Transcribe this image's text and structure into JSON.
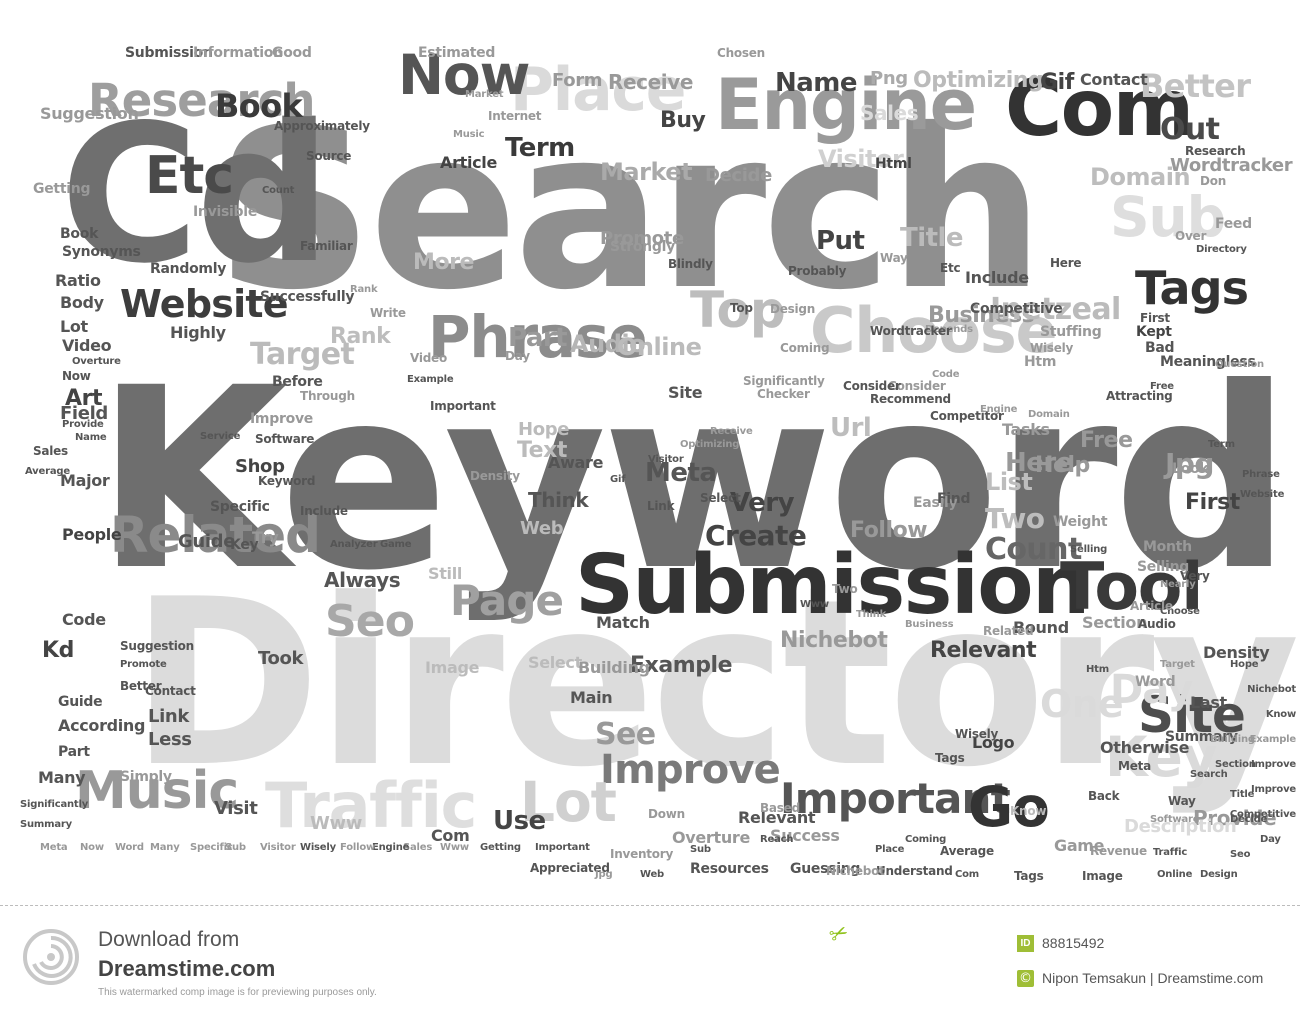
{
  "cloud": {
    "words": [
      {
        "t": "Keyword",
        "c": "#6e6e6e"
      },
      {
        "t": "Search",
        "c": "#8f8f8f"
      },
      {
        "t": "Directory",
        "c": "#dcdcdc"
      },
      {
        "t": "Cd",
        "c": "#6f6f6f"
      },
      {
        "t": "Submission",
        "c": "#333333"
      },
      {
        "t": "Com",
        "c": "#333333"
      },
      {
        "t": "Engine",
        "c": "#9a9a9a"
      },
      {
        "t": "Phrase",
        "c": "#8c8c8c"
      },
      {
        "t": "Choose",
        "c": "#c9c9c9"
      },
      {
        "t": "Research",
        "c": "#9e9e9e"
      },
      {
        "t": "Related",
        "c": "#8a8a8a"
      },
      {
        "t": "Tool",
        "c": "#3a3a3a"
      },
      {
        "t": "Music",
        "c": "#999999"
      },
      {
        "t": "Traffic",
        "c": "#dedede"
      },
      {
        "t": "Important",
        "c": "#555555"
      },
      {
        "t": "Improve",
        "c": "#7a7a7a"
      },
      {
        "t": "Website",
        "c": "#3d3d3d"
      },
      {
        "t": "Place",
        "c": "#dadada"
      },
      {
        "t": "Now",
        "c": "#555555"
      },
      {
        "t": "Etc",
        "c": "#4a4a4a"
      },
      {
        "t": "Sub",
        "c": "#dedede"
      },
      {
        "t": "Tags",
        "c": "#333333"
      },
      {
        "t": "Top",
        "c": "#bdbdbd"
      },
      {
        "t": "Key",
        "c": "#dadada"
      },
      {
        "t": "Site",
        "c": "#4d4d4d"
      },
      {
        "t": "Go",
        "c": "#333333"
      },
      {
        "t": "Lot",
        "c": "#d0d0d0"
      },
      {
        "t": "Page",
        "c": "#a0a0a0"
      },
      {
        "t": "Seo",
        "c": "#a8a8a8"
      },
      {
        "t": "Book",
        "c": "#3a3a3a"
      },
      {
        "t": "Better",
        "c": "#c3c3c3"
      },
      {
        "t": "Out",
        "c": "#4a4a4a"
      },
      {
        "t": "Market",
        "c": "#aaaaaa"
      },
      {
        "t": "Domain",
        "c": "#bdbdbd"
      },
      {
        "t": "Term",
        "c": "#3a3a3a"
      },
      {
        "t": "Target",
        "c": "#bbbbbb"
      },
      {
        "t": "Business",
        "c": "#999999"
      },
      {
        "t": "Inetzeal",
        "c": "#bbbbbb"
      },
      {
        "t": "Part",
        "c": "#999999"
      },
      {
        "t": "Audio",
        "c": "#b5b5b5"
      },
      {
        "t": "Online",
        "c": "#bbbbbb"
      },
      {
        "t": "Rank",
        "c": "#bdbdbd"
      },
      {
        "t": "Put",
        "c": "#444444"
      },
      {
        "t": "Title",
        "c": "#bbbbbb"
      },
      {
        "t": "More",
        "c": "#bbbbbb"
      },
      {
        "t": "Promote",
        "c": "#999999"
      },
      {
        "t": "Decide",
        "c": "#999999"
      },
      {
        "t": "Visitor",
        "c": "#d0d0d0"
      },
      {
        "t": "Article",
        "c": "#444444"
      },
      {
        "t": "Html",
        "c": "#444444"
      },
      {
        "t": "Name",
        "c": "#444444"
      },
      {
        "t": "Png",
        "c": "#aaaaaa"
      },
      {
        "t": "Optimizing",
        "c": "#bbbbbb"
      },
      {
        "t": "Form",
        "c": "#999999"
      },
      {
        "t": "Receive",
        "c": "#999999"
      },
      {
        "t": "Sales",
        "c": "#dadada"
      },
      {
        "t": "Contact",
        "c": "#555555"
      },
      {
        "t": "Gif",
        "c": "#444444"
      },
      {
        "t": "Buy",
        "c": "#444444"
      },
      {
        "t": "Create",
        "c": "#444444"
      },
      {
        "t": "Very",
        "c": "#444444"
      },
      {
        "t": "Follow",
        "c": "#999999"
      },
      {
        "t": "Count",
        "c": "#666666"
      },
      {
        "t": "Here",
        "c": "#999999"
      },
      {
        "t": "Two",
        "c": "#bdbdbd"
      },
      {
        "t": "List",
        "c": "#bdbdbd"
      },
      {
        "t": "Meta",
        "c": "#555555"
      },
      {
        "t": "Url",
        "c": "#bdbdbd"
      },
      {
        "t": "Help",
        "c": "#999999"
      },
      {
        "t": "Tasks",
        "c": "#999999"
      },
      {
        "t": "Free",
        "c": "#999999"
      },
      {
        "t": "Jpg",
        "c": "#999999"
      },
      {
        "t": "First",
        "c": "#444444"
      },
      {
        "t": "Relevant",
        "c": "#444444"
      },
      {
        "t": "Nichebot",
        "c": "#999999"
      },
      {
        "t": "Example",
        "c": "#555555"
      },
      {
        "t": "See",
        "c": "#999999"
      },
      {
        "t": "Use",
        "c": "#444444"
      },
      {
        "t": "Provide",
        "c": "#999999"
      },
      {
        "t": "Day",
        "c": "#dadada"
      },
      {
        "t": "One",
        "c": "#dadada"
      },
      {
        "t": "Logo",
        "c": "#444444"
      },
      {
        "t": "Wordtracker",
        "c": "#999999"
      },
      {
        "t": "Feed",
        "c": "#999999"
      },
      {
        "t": "Kd",
        "c": "#444444"
      },
      {
        "t": "Art",
        "c": "#444444"
      },
      {
        "t": "Link",
        "c": "#555555"
      },
      {
        "t": "Less",
        "c": "#555555"
      },
      {
        "t": "Visit",
        "c": "#555555"
      },
      {
        "t": "Www",
        "c": "#bbbbbb"
      },
      {
        "t": "Shop",
        "c": "#444444"
      },
      {
        "t": "Guide",
        "c": "#555555"
      },
      {
        "t": "People",
        "c": "#444444"
      },
      {
        "t": "Major",
        "c": "#555555"
      },
      {
        "t": "Field",
        "c": "#555555"
      },
      {
        "t": "Lot",
        "c": "#555555"
      },
      {
        "t": "Ratio",
        "c": "#555555"
      },
      {
        "t": "Body",
        "c": "#555555"
      },
      {
        "t": "Video",
        "c": "#555555"
      },
      {
        "t": "Highly",
        "c": "#555555"
      },
      {
        "t": "Many",
        "c": "#555555"
      },
      {
        "t": "Simply",
        "c": "#999999"
      },
      {
        "t": "Code",
        "c": "#555555"
      },
      {
        "t": "Suggestion",
        "c": "#999999"
      },
      {
        "t": "Try",
        "c": "#999999"
      },
      {
        "t": "Key",
        "c": "#555555"
      },
      {
        "t": "Specific",
        "c": "#555555"
      },
      {
        "t": "Took",
        "c": "#555555"
      },
      {
        "t": "Always",
        "c": "#555555"
      },
      {
        "t": "Still",
        "c": "#bbbbbb"
      },
      {
        "t": "Web",
        "c": "#bbbbbb"
      },
      {
        "t": "Think",
        "c": "#555555"
      },
      {
        "t": "Aware",
        "c": "#555555"
      },
      {
        "t": "Hope",
        "c": "#bbbbbb"
      },
      {
        "t": "Text",
        "c": "#bbbbbb"
      },
      {
        "t": "Image",
        "c": "#bbbbbb"
      },
      {
        "t": "Select",
        "c": "#bbbbbb"
      },
      {
        "t": "Match",
        "c": "#555555"
      },
      {
        "t": "Building",
        "c": "#999999"
      },
      {
        "t": "Main",
        "c": "#555555"
      },
      {
        "t": "Last",
        "c": "#555555"
      },
      {
        "t": "Density",
        "c": "#555555"
      },
      {
        "t": "Bound",
        "c": "#555555"
      },
      {
        "t": "Section",
        "c": "#999999"
      },
      {
        "t": "Word",
        "c": "#999999"
      },
      {
        "t": "Description",
        "c": "#dadada"
      },
      {
        "t": "Game",
        "c": "#999999"
      },
      {
        "t": "Success",
        "c": "#999999"
      },
      {
        "t": "Overture",
        "c": "#999999"
      },
      {
        "t": "Com",
        "c": "#555555"
      },
      {
        "t": "Resources",
        "c": "#555555"
      },
      {
        "t": "Guessing",
        "c": "#555555"
      },
      {
        "t": "Understand",
        "c": "#555555"
      },
      {
        "t": "Nichebot",
        "c": "#999999"
      },
      {
        "t": "Selling",
        "c": "#999999"
      },
      {
        "t": "Month",
        "c": "#999999"
      },
      {
        "t": "Weight",
        "c": "#999999"
      },
      {
        "t": "Easily",
        "c": "#999999"
      },
      {
        "t": "Find",
        "c": "#555555"
      },
      {
        "t": "Htm",
        "c": "#999999"
      },
      {
        "t": "Bad",
        "c": "#555555"
      },
      {
        "t": "Kept",
        "c": "#444444"
      },
      {
        "t": "Stuffing",
        "c": "#999999"
      },
      {
        "t": "Include",
        "c": "#555555"
      },
      {
        "t": "Getting",
        "c": "#999999"
      },
      {
        "t": "Submission",
        "c": "#555555"
      },
      {
        "t": "Information",
        "c": "#999999"
      },
      {
        "t": "Good",
        "c": "#999999"
      },
      {
        "t": "Estimated",
        "c": "#999999"
      },
      {
        "t": "Chosen",
        "c": "#999999"
      },
      {
        "t": "Source",
        "c": "#555555"
      },
      {
        "t": "Approximately",
        "c": "#555555"
      },
      {
        "t": "Invisible",
        "c": "#999999"
      },
      {
        "t": "Count",
        "c": "#555555"
      },
      {
        "t": "Familiar",
        "c": "#555555"
      },
      {
        "t": "Strongly",
        "c": "#999999"
      },
      {
        "t": "Blindly",
        "c": "#555555"
      },
      {
        "t": "Probably",
        "c": "#555555"
      },
      {
        "t": "Design",
        "c": "#999999"
      },
      {
        "t": "Coming",
        "c": "#999999"
      },
      {
        "t": "Write",
        "c": "#999999"
      },
      {
        "t": "Successfully",
        "c": "#555555"
      },
      {
        "t": "Randomly",
        "c": "#555555"
      },
      {
        "t": "Synonyms",
        "c": "#555555"
      },
      {
        "t": "Book",
        "c": "#555555"
      },
      {
        "t": "Before",
        "c": "#555555"
      },
      {
        "t": "Through",
        "c": "#999999"
      },
      {
        "t": "Improve",
        "c": "#999999"
      },
      {
        "t": "Day",
        "c": "#999999"
      },
      {
        "t": "Significantly",
        "c": "#999999"
      },
      {
        "t": "Checker",
        "c": "#999999"
      },
      {
        "t": "Site",
        "c": "#555555"
      },
      {
        "t": "Top",
        "c": "#555555"
      },
      {
        "t": "Competitive",
        "c": "#555555"
      },
      {
        "t": "Way",
        "c": "#999999"
      },
      {
        "t": "Etc",
        "c": "#555555"
      },
      {
        "t": "Here",
        "c": "#555555"
      },
      {
        "t": "First",
        "c": "#555555"
      },
      {
        "t": "Wisely",
        "c": "#999999"
      },
      {
        "t": "Free",
        "c": "#555555"
      },
      {
        "t": "Attracting",
        "c": "#555555"
      },
      {
        "t": "Recommend",
        "c": "#555555"
      },
      {
        "t": "Depends",
        "c": "#999999"
      },
      {
        "t": "Competitor",
        "c": "#555555"
      },
      {
        "t": "Otherwise",
        "c": "#555555"
      },
      {
        "t": "Summary",
        "c": "#555555"
      },
      {
        "t": "Meaningless",
        "c": "#555555"
      },
      {
        "t": "Question",
        "c": "#999999"
      },
      {
        "t": "Visitor",
        "c": "#555555"
      },
      {
        "t": "Relevant",
        "c": "#555555"
      },
      {
        "t": "Audio",
        "c": "#555555"
      },
      {
        "t": "Very",
        "c": "#555555"
      },
      {
        "t": "Choose",
        "c": "#555555"
      },
      {
        "t": "Meta",
        "c": "#555555"
      },
      {
        "t": "Wisely",
        "c": "#555555"
      },
      {
        "t": "Tags",
        "c": "#555555"
      },
      {
        "t": "Search",
        "c": "#555555"
      },
      {
        "t": "Way",
        "c": "#555555"
      },
      {
        "t": "Know",
        "c": "#bbbbbb"
      },
      {
        "t": "Back",
        "c": "#555555"
      },
      {
        "t": "Average",
        "c": "#555555"
      },
      {
        "t": "Based",
        "c": "#999999"
      },
      {
        "t": "Down",
        "c": "#999999"
      },
      {
        "t": "Reach",
        "c": "#555555"
      },
      {
        "t": "Place",
        "c": "#555555"
      },
      {
        "t": "Traffic",
        "c": "#555555"
      },
      {
        "t": "Software",
        "c": "#999999"
      },
      {
        "t": "Seo",
        "c": "#555555"
      },
      {
        "t": "Revenue",
        "c": "#999999"
      },
      {
        "t": "Appreciated",
        "c": "#555555"
      },
      {
        "t": "Inventory",
        "c": "#999999"
      },
      {
        "t": "Term",
        "c": "#555555"
      },
      {
        "t": "Nearly",
        "c": "#999999"
      },
      {
        "t": "Look",
        "c": "#999999"
      },
      {
        "t": "Over",
        "c": "#999999"
      },
      {
        "t": "Don",
        "c": "#999999"
      },
      {
        "t": "Research",
        "c": "#555555"
      },
      {
        "t": "Market",
        "c": "#999999"
      },
      {
        "t": "Internet",
        "c": "#999999"
      },
      {
        "t": "Music",
        "c": "#999999"
      },
      {
        "t": "Rank",
        "c": "#999999"
      },
      {
        "t": "Density",
        "c": "#999999"
      },
      {
        "t": "Important",
        "c": "#555555"
      },
      {
        "t": "Video",
        "c": "#999999"
      },
      {
        "t": "Example",
        "c": "#555555"
      },
      {
        "t": "Game",
        "c": "#555555"
      },
      {
        "t": "Analyzer",
        "c": "#555555"
      },
      {
        "t": "Include",
        "c": "#555555"
      },
      {
        "t": "Keyword",
        "c": "#555555"
      },
      {
        "t": "Better",
        "c": "#555555"
      },
      {
        "t": "Contact",
        "c": "#555555"
      },
      {
        "t": "Guide",
        "c": "#555555"
      },
      {
        "t": "According",
        "c": "#555555"
      },
      {
        "t": "Part",
        "c": "#555555"
      },
      {
        "t": "Suggestion",
        "c": "#555555"
      },
      {
        "t": "Promote",
        "c": "#555555"
      },
      {
        "t": "Now",
        "c": "#555555"
      },
      {
        "t": "Overture",
        "c": "#555555"
      },
      {
        "t": "Provide",
        "c": "#555555"
      },
      {
        "t": "Name",
        "c": "#555555"
      },
      {
        "t": "Sales",
        "c": "#555555"
      },
      {
        "t": "Average",
        "c": "#555555"
      },
      {
        "t": "Service",
        "c": "#555555"
      },
      {
        "t": "Software",
        "c": "#555555"
      },
      {
        "t": "Website",
        "c": "#555555"
      },
      {
        "t": "Phrase",
        "c": "#555555"
      },
      {
        "t": "Directory",
        "c": "#555555"
      },
      {
        "t": "Selling",
        "c": "#555555"
      },
      {
        "t": "Code",
        "c": "#999999"
      },
      {
        "t": "Consider",
        "c": "#999999"
      },
      {
        "t": "Consider",
        "c": "#555555"
      },
      {
        "t": "Wordtracker",
        "c": "#555555"
      },
      {
        "t": "Engine",
        "c": "#999999"
      },
      {
        "t": "Domain",
        "c": "#999999"
      },
      {
        "t": "Receive",
        "c": "#999999"
      },
      {
        "t": "Optimizing",
        "c": "#999999"
      },
      {
        "t": "Link",
        "c": "#555555"
      },
      {
        "t": "Select",
        "c": "#555555"
      },
      {
        "t": "Gif",
        "c": "#555555"
      },
      {
        "t": "Www",
        "c": "#555555"
      },
      {
        "t": "Two",
        "c": "#999999"
      },
      {
        "t": "Think",
        "c": "#999999"
      },
      {
        "t": "Business",
        "c": "#999999"
      },
      {
        "t": "Related",
        "c": "#999999"
      },
      {
        "t": "Article",
        "c": "#999999"
      },
      {
        "t": "Htm",
        "c": "#555555"
      },
      {
        "t": "Target",
        "c": "#999999"
      },
      {
        "t": "Hope",
        "c": "#555555"
      },
      {
        "t": "Building",
        "c": "#999999"
      },
      {
        "t": "Section",
        "c": "#555555"
      },
      {
        "t": "Title",
        "c": "#555555"
      },
      {
        "t": "Decide",
        "c": "#555555"
      },
      {
        "t": "Design",
        "c": "#555555"
      },
      {
        "t": "Online",
        "c": "#555555"
      },
      {
        "t": "Image",
        "c": "#555555"
      },
      {
        "t": "Tags",
        "c": "#555555"
      },
      {
        "t": "Com",
        "c": "#555555"
      },
      {
        "t": "Coming",
        "c": "#555555"
      },
      {
        "t": "Sub",
        "c": "#555555"
      },
      {
        "t": "Web",
        "c": "#555555"
      },
      {
        "t": "Jpg",
        "c": "#999999"
      },
      {
        "t": "Important",
        "c": "#555555"
      },
      {
        "t": "Getting",
        "c": "#555555"
      },
      {
        "t": "Www",
        "c": "#999999"
      },
      {
        "t": "Sales",
        "c": "#999999"
      },
      {
        "t": "Engine",
        "c": "#555555"
      },
      {
        "t": "Follow",
        "c": "#999999"
      },
      {
        "t": "Wisely",
        "c": "#555555"
      },
      {
        "t": "Visitor",
        "c": "#999999"
      },
      {
        "t": "Sub",
        "c": "#999999"
      },
      {
        "t": "Specific",
        "c": "#999999"
      },
      {
        "t": "Many",
        "c": "#999999"
      },
      {
        "t": "Word",
        "c": "#999999"
      },
      {
        "t": "Now",
        "c": "#999999"
      },
      {
        "t": "Meta",
        "c": "#999999"
      },
      {
        "t": "Summary",
        "c": "#555555"
      },
      {
        "t": "Significantly",
        "c": "#555555"
      },
      {
        "t": "Day",
        "c": "#555555"
      },
      {
        "t": "Competitive",
        "c": "#555555"
      },
      {
        "t": "Improve",
        "c": "#555555"
      },
      {
        "t": "Improve",
        "c": "#555555"
      },
      {
        "t": "Example",
        "c": "#999999"
      },
      {
        "t": "Know",
        "c": "#555555"
      },
      {
        "t": "Nichebot",
        "c": "#555555"
      }
    ]
  },
  "footer": {
    "download_from": "Download from",
    "site_name": "Dreamstime.com",
    "disclaimer": "This watermarked comp image is for previewing purposes only.",
    "id_label": "ID",
    "image_id": "88815492",
    "credit": "Nipon Temsakun | Dreamstime.com",
    "accent_color": "#8fc21a",
    "logo_icon": "dreamstime-swirl-logo",
    "scissors_icon": "scissors-icon"
  }
}
